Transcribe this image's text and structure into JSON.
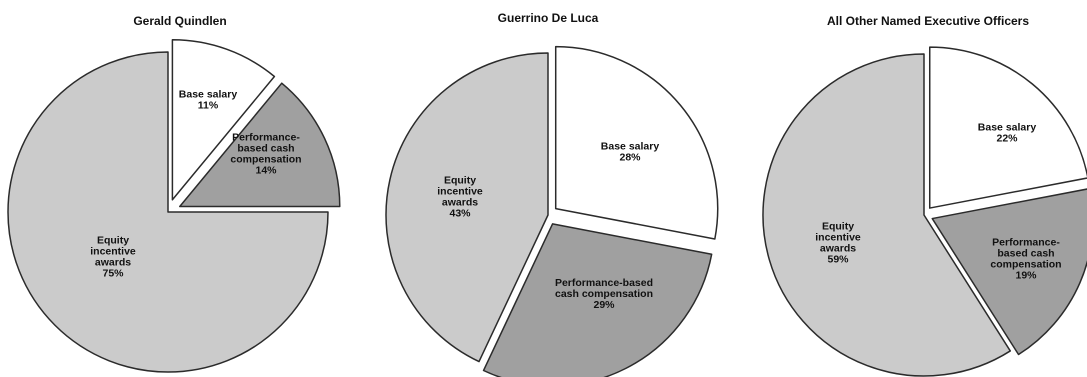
{
  "chart_data": [
    {
      "type": "pie",
      "title": "Gerald Quindlen",
      "slices": [
        {
          "label": "Base salary",
          "value": 11,
          "label_lines": [
            "Base salary",
            "11%"
          ],
          "color": "#ffffff",
          "exploded": true
        },
        {
          "label": "Performance-based cash compensation",
          "value": 14,
          "label_lines": [
            "Performance-",
            "based cash",
            "compensation",
            "14%"
          ],
          "color": "#a0a0a0",
          "exploded": true
        },
        {
          "label": "Equity incentive awards",
          "value": 75,
          "label_lines": [
            "Equity",
            "incentive",
            "awards",
            "75%"
          ],
          "color": "#cbcbcb",
          "exploded": false
        }
      ]
    },
    {
      "type": "pie",
      "title": "Guerrino De Luca",
      "slices": [
        {
          "label": "Base salary",
          "value": 28,
          "label_lines": [
            "Base salary",
            "28%"
          ],
          "color": "#ffffff",
          "exploded": true
        },
        {
          "label": "Performance-based cash compensation",
          "value": 29,
          "label_lines": [
            "Performance-based",
            "cash compensation",
            "29%"
          ],
          "color": "#a0a0a0",
          "exploded": true
        },
        {
          "label": "Equity incentive awards",
          "value": 43,
          "label_lines": [
            "Equity",
            "incentive",
            "awards",
            "43%"
          ],
          "color": "#cbcbcb",
          "exploded": false
        }
      ]
    },
    {
      "type": "pie",
      "title": "All Other Named Executive Officers",
      "slices": [
        {
          "label": "Base salary",
          "value": 22,
          "label_lines": [
            "Base salary",
            "22%"
          ],
          "color": "#ffffff",
          "exploded": true
        },
        {
          "label": "Performance-based cash compensation",
          "value": 19,
          "label_lines": [
            "Performance-",
            "based cash",
            "compensation",
            "19%"
          ],
          "color": "#a0a0a0",
          "exploded": true
        },
        {
          "label": "Equity incentive awards",
          "value": 59,
          "label_lines": [
            "Equity",
            "incentive",
            "awards",
            "59%"
          ],
          "color": "#cbcbcb",
          "exploded": false
        }
      ]
    }
  ]
}
